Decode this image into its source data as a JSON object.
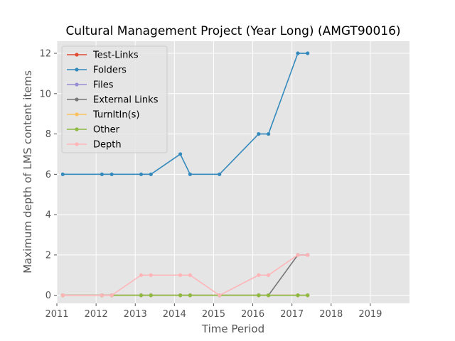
{
  "chart_data": {
    "type": "line",
    "title": "Cultural Management Project (Year Long) (AMGT90016)",
    "xlabel": "Time Period",
    "ylabel": "Maximum depth of LMS content items",
    "xlim": [
      2011,
      2020
    ],
    "ylim": [
      -0.4,
      12.6
    ],
    "xticks": [
      "2011",
      "2012",
      "2013",
      "2014",
      "2015",
      "2016",
      "2017",
      "2018",
      "2019"
    ],
    "yticks": [
      "0",
      "2",
      "4",
      "6",
      "8",
      "10",
      "12"
    ],
    "grid": true,
    "legend_position": "top-left",
    "x": [
      2011.15,
      2012.15,
      2012.4,
      2013.15,
      2013.4,
      2014.15,
      2014.4,
      2015.15,
      2016.15,
      2016.4,
      2017.15,
      2017.4
    ],
    "series": [
      {
        "name": "Test-Links",
        "color": "#E24A33",
        "values": [
          0,
          0,
          0,
          0,
          0,
          0,
          0,
          0,
          0,
          0,
          0,
          0
        ]
      },
      {
        "name": "Folders",
        "color": "#348ABD",
        "values": [
          6,
          6,
          6,
          6,
          6,
          7,
          6,
          6,
          8,
          8,
          12,
          12
        ]
      },
      {
        "name": "Files",
        "color": "#988ED5",
        "values": [
          0,
          0,
          0,
          0,
          0,
          0,
          0,
          0,
          0,
          0,
          0,
          0
        ]
      },
      {
        "name": "External Links",
        "color": "#777777",
        "values": [
          0,
          0,
          0,
          0,
          0,
          0,
          0,
          0,
          0,
          0,
          2,
          2
        ]
      },
      {
        "name": "TurnItIn(s)",
        "color": "#FBC15E",
        "values": [
          0,
          0,
          0,
          0,
          0,
          0,
          0,
          0,
          0,
          0,
          0,
          0
        ]
      },
      {
        "name": "Other",
        "color": "#8EBA42",
        "values": [
          0,
          0,
          0,
          0,
          0,
          0,
          0,
          0,
          0,
          0,
          0,
          0
        ]
      },
      {
        "name": "Depth",
        "color": "#FFB5B8",
        "values": [
          0,
          0,
          0,
          1,
          1,
          1,
          1,
          0,
          1,
          1,
          2,
          2
        ]
      }
    ]
  }
}
